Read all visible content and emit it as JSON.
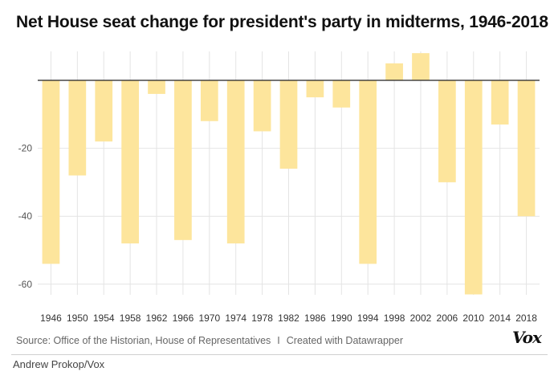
{
  "title": "Net House seat change for president's party in midterms, 1946-2018",
  "footer": {
    "source": "Source: Office of the Historian, House of Representatives",
    "separator": "I",
    "created_with": "Created with Datawrapper",
    "brand": "Vox",
    "credit": "Andrew Prokop/Vox"
  },
  "colors": {
    "bar": "#fde59c",
    "zero_line": "#222222",
    "grid": "#e4e4e4"
  },
  "chart_data": {
    "type": "bar",
    "title": "Net House seat change for president's party in midterms, 1946-2018",
    "xlabel": "",
    "ylabel": "",
    "categories": [
      "1946",
      "1950",
      "1954",
      "1958",
      "1962",
      "1966",
      "1970",
      "1974",
      "1978",
      "1982",
      "1986",
      "1990",
      "1994",
      "1998",
      "2002",
      "2006",
      "2010",
      "2014",
      "2018"
    ],
    "values": [
      -54,
      -28,
      -18,
      -48,
      -4,
      -47,
      -12,
      -48,
      -15,
      -26,
      -5,
      -8,
      -54,
      5,
      8,
      -30,
      -63,
      -13,
      -40
    ],
    "ylim": [
      -63,
      8
    ],
    "yticks": [
      -60,
      -40,
      -20
    ],
    "ytick_labels": [
      "-60",
      "-40",
      "-20"
    ],
    "grid": true,
    "legend": "none"
  }
}
